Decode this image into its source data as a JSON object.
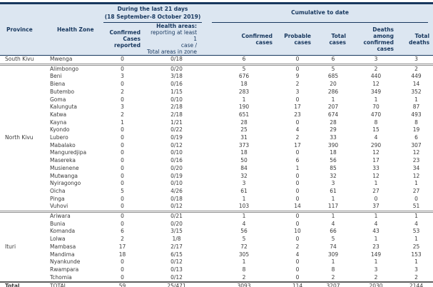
{
  "colors": {
    "header_bg": "#dce6f1",
    "header_text": "#17375e",
    "line_dark": "#17375e",
    "line_grey": "#8f8f8f",
    "line_mid": "#5f5f5f",
    "body_text": "#3a3a3a"
  },
  "table_header": {
    "province": "Province",
    "health_zone": "Health Zone",
    "last21_title": "During the last 21 days",
    "last21_subtitle": "(18 September-8 October 2019)",
    "cumulative_title": "Cumulative to date",
    "confirmed_reported": "Confirmed\nCases\nreported",
    "health_areas_title": "Health areas:",
    "health_areas_detail": "reporting at least 1\ncase /\nTotal areas in zone",
    "confirmed_cases": "Confirmed\ncases",
    "probable_cases": "Probable\ncases",
    "total_cases": "Total\ncases",
    "deaths_confirmed": "Deaths among\nconfirmed\ncases",
    "total_deaths": "Total\ndeaths"
  },
  "rows": [
    {
      "prov": "South Kivu",
      "zone": "Mwenga",
      "c21": "0",
      "areas": "0/18",
      "conf": "6",
      "prob": "0",
      "tot": "6",
      "dconf": "3",
      "dtot": "3"
    },
    {
      "prov": "",
      "zone": "Alimbongo",
      "c21": "0",
      "areas": "0/20",
      "conf": "5",
      "prob": "0",
      "tot": "5",
      "dconf": "2",
      "dtot": "2",
      "sep": true
    },
    {
      "prov": "",
      "zone": "Beni",
      "c21": "3",
      "areas": "3/18",
      "conf": "676",
      "prob": "9",
      "tot": "685",
      "dconf": "440",
      "dtot": "449"
    },
    {
      "prov": "",
      "zone": "Biena",
      "c21": "0",
      "areas": "0/16",
      "conf": "18",
      "prob": "2",
      "tot": "20",
      "dconf": "12",
      "dtot": "14"
    },
    {
      "prov": "",
      "zone": "Butembo",
      "c21": "2",
      "areas": "1/15",
      "conf": "283",
      "prob": "3",
      "tot": "286",
      "dconf": "349",
      "dtot": "352"
    },
    {
      "prov": "",
      "zone": "Goma",
      "c21": "0",
      "areas": "0/10",
      "conf": "1",
      "prob": "0",
      "tot": "1",
      "dconf": "1",
      "dtot": "1"
    },
    {
      "prov": "",
      "zone": "Kalunguta",
      "c21": "3",
      "areas": "2/18",
      "conf": "190",
      "prob": "17",
      "tot": "207",
      "dconf": "70",
      "dtot": "87"
    },
    {
      "prov": "",
      "zone": "Katwa",
      "c21": "2",
      "areas": "2/18",
      "conf": "651",
      "prob": "23",
      "tot": "674",
      "dconf": "470",
      "dtot": "493"
    },
    {
      "prov": "",
      "zone": "Kayna",
      "c21": "1",
      "areas": "1/21",
      "conf": "28",
      "prob": "0",
      "tot": "28",
      "dconf": "8",
      "dtot": "8"
    },
    {
      "prov": "",
      "zone": "Kyondo",
      "c21": "0",
      "areas": "0/22",
      "conf": "25",
      "prob": "4",
      "tot": "29",
      "dconf": "15",
      "dtot": "19"
    },
    {
      "prov": "North Kivu",
      "zone": "Lubero",
      "c21": "0",
      "areas": "0/19",
      "conf": "31",
      "prob": "2",
      "tot": "33",
      "dconf": "4",
      "dtot": "6"
    },
    {
      "prov": "",
      "zone": "Mabalako",
      "c21": "0",
      "areas": "0/12",
      "conf": "373",
      "prob": "17",
      "tot": "390",
      "dconf": "290",
      "dtot": "307"
    },
    {
      "prov": "",
      "zone": "Manguredjipa",
      "c21": "0",
      "areas": "0/10",
      "conf": "18",
      "prob": "0",
      "tot": "18",
      "dconf": "12",
      "dtot": "12"
    },
    {
      "prov": "",
      "zone": "Masereka",
      "c21": "0",
      "areas": "0/16",
      "conf": "50",
      "prob": "6",
      "tot": "56",
      "dconf": "17",
      "dtot": "23"
    },
    {
      "prov": "",
      "zone": "Musienene",
      "c21": "0",
      "areas": "0/20",
      "conf": "84",
      "prob": "1",
      "tot": "85",
      "dconf": "33",
      "dtot": "34"
    },
    {
      "prov": "",
      "zone": "Mutwanga",
      "c21": "0",
      "areas": "0/19",
      "conf": "32",
      "prob": "0",
      "tot": "32",
      "dconf": "12",
      "dtot": "12"
    },
    {
      "prov": "",
      "zone": "Nyiragongo",
      "c21": "0",
      "areas": "0/10",
      "conf": "3",
      "prob": "0",
      "tot": "3",
      "dconf": "1",
      "dtot": "1"
    },
    {
      "prov": "",
      "zone": "Oicha",
      "c21": "5",
      "areas": "4/26",
      "conf": "61",
      "prob": "0",
      "tot": "61",
      "dconf": "27",
      "dtot": "27"
    },
    {
      "prov": "",
      "zone": "Pinga",
      "c21": "0",
      "areas": "0/18",
      "conf": "1",
      "prob": "0",
      "tot": "1",
      "dconf": "0",
      "dtot": "0"
    },
    {
      "prov": "",
      "zone": "Vuhovi",
      "c21": "0",
      "areas": "0/12",
      "conf": "103",
      "prob": "14",
      "tot": "117",
      "dconf": "37",
      "dtot": "51"
    },
    {
      "prov": "",
      "zone": "Ariwara",
      "c21": "0",
      "areas": "0/21",
      "conf": "1",
      "prob": "0",
      "tot": "1",
      "dconf": "1",
      "dtot": "1",
      "sep": true
    },
    {
      "prov": "",
      "zone": "Bunia",
      "c21": "0",
      "areas": "0/20",
      "conf": "4",
      "prob": "0",
      "tot": "4",
      "dconf": "4",
      "dtot": "4"
    },
    {
      "prov": "",
      "zone": "Komanda",
      "c21": "6",
      "areas": "3/15",
      "conf": "56",
      "prob": "10",
      "tot": "66",
      "dconf": "43",
      "dtot": "53"
    },
    {
      "prov": "",
      "zone": "Lolwa",
      "c21": "2",
      "areas": "1/8",
      "conf": "5",
      "prob": "0",
      "tot": "5",
      "dconf": "1",
      "dtot": "1"
    },
    {
      "prov": "Ituri",
      "zone": "Mambasa",
      "c21": "17",
      "areas": "2/17",
      "conf": "72",
      "prob": "2",
      "tot": "74",
      "dconf": "23",
      "dtot": "25"
    },
    {
      "prov": "",
      "zone": "Mandima",
      "c21": "18",
      "areas": "6/15",
      "conf": "305",
      "prob": "4",
      "tot": "309",
      "dconf": "149",
      "dtot": "153"
    },
    {
      "prov": "",
      "zone": "Nyankunde",
      "c21": "0",
      "areas": "0/12",
      "conf": "1",
      "prob": "0",
      "tot": "1",
      "dconf": "1",
      "dtot": "1"
    },
    {
      "prov": "",
      "zone": "Rwampara",
      "c21": "0",
      "areas": "0/13",
      "conf": "8",
      "prob": "0",
      "tot": "8",
      "dconf": "3",
      "dtot": "3"
    },
    {
      "prov": "",
      "zone": "Tchomia",
      "c21": "0",
      "areas": "0/12",
      "conf": "2",
      "prob": "0",
      "tot": "2",
      "dconf": "2",
      "dtot": "2"
    },
    {
      "prov": "Total",
      "zone": "TOTAL",
      "c21": "59",
      "areas": "25/471",
      "conf": "3093",
      "prob": "114",
      "tot": "3207",
      "dconf": "2030",
      "dtot": "2144",
      "total": true
    }
  ]
}
